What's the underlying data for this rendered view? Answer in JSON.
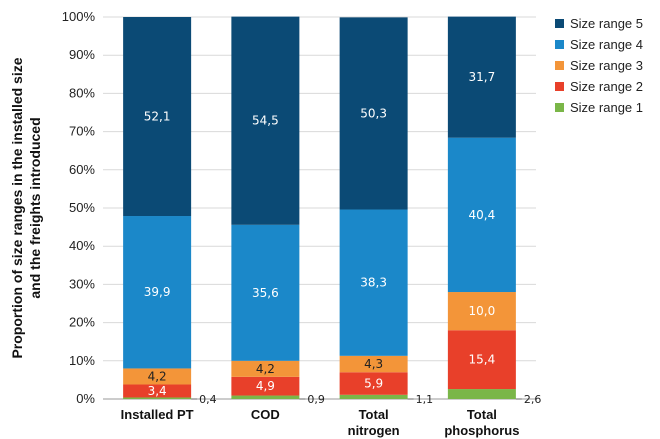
{
  "chart_data": {
    "type": "bar",
    "stacked": true,
    "categories": [
      "Installed PT",
      "COD",
      "Total nitrogen",
      "Total phosphorus"
    ],
    "series": [
      {
        "name": "Size range 1",
        "values": [
          0.4,
          0.9,
          1.1,
          2.6
        ],
        "color": "#7ab648"
      },
      {
        "name": "Size range 2",
        "values": [
          3.4,
          4.9,
          5.9,
          15.4
        ],
        "color": "#e8402a"
      },
      {
        "name": "Size range 3",
        "values": [
          4.2,
          4.2,
          4.3,
          10.0
        ],
        "color": "#f39539"
      },
      {
        "name": "Size range 4",
        "values": [
          39.9,
          35.6,
          38.3,
          40.4
        ],
        "color": "#1b88c9"
      },
      {
        "name": "Size range 5",
        "values": [
          52.1,
          54.5,
          50.3,
          31.7
        ],
        "color": "#0b4a75"
      }
    ],
    "data_labels": [
      [
        "0,4",
        "0,9",
        "1,1",
        "2,6"
      ],
      [
        "3,4",
        "4,9",
        "5,9",
        "15,4"
      ],
      [
        "4,2",
        "4,2",
        "4,3",
        "10,0"
      ],
      [
        "39,9",
        "35,6",
        "38,3",
        "40,4"
      ],
      [
        "52,1",
        "54,5",
        "50,3",
        "31,7"
      ]
    ],
    "ylabel": "Proportion of size ranges in the installed size and the freights introduced",
    "yticks": [
      "0%",
      "10%",
      "20%",
      "30%",
      "40%",
      "50%",
      "60%",
      "70%",
      "80%",
      "90%",
      "100%"
    ],
    "ylim": [
      0,
      100
    ],
    "grid": true,
    "legend": "right"
  }
}
